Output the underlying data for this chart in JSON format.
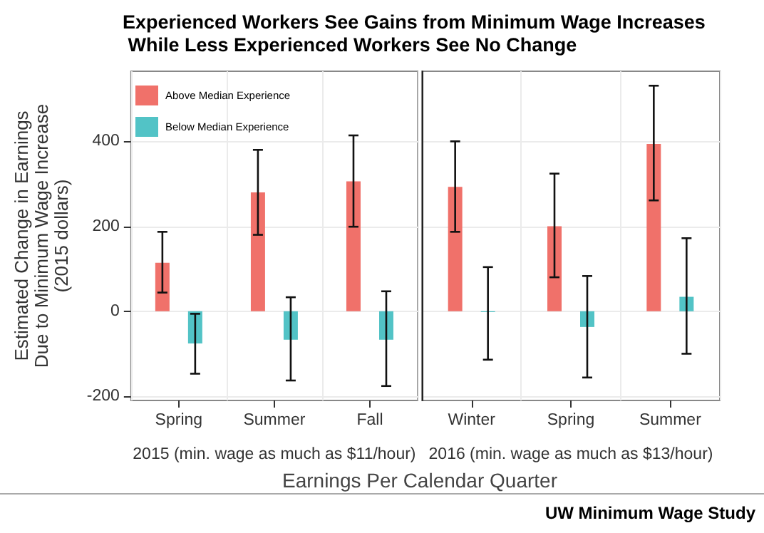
{
  "chart_data": [
    {
      "type": "bar",
      "title": "Experienced Workers See Gains from Minimum Wage Increases\n While Less Experienced Workers See No Change",
      "ylabel": "Estimated Change in Earnings\nDue to Minimum Wage Increase\n(2015 dollars)",
      "xlabel": "2015 (min. wage as much as $11/hour)",
      "annotations": [
        "Earnings Per Calendar Quarter",
        "UW Minimum Wage Study"
      ],
      "categories": [
        "Spring",
        "Summer",
        "Fall"
      ],
      "series": [
        {
          "name": "Above Median Experience",
          "color": "#f0716a",
          "values": [
            114,
            280,
            306
          ],
          "errors": [
            [
              44,
              187
            ],
            [
              180,
              380
            ],
            [
              199,
              414
            ]
          ]
        },
        {
          "name": "Below Median Experience",
          "color": "#52c3c6",
          "values": [
            -76,
            -67,
            -67
          ],
          "errors": [
            [
              -147,
              -6
            ],
            [
              -163,
              33
            ],
            [
              -176,
              47
            ]
          ]
        }
      ],
      "ylim": [
        -210,
        565
      ],
      "yticks": [
        -200,
        0,
        200,
        400
      ],
      "grid": true,
      "legend": "top left"
    },
    {
      "type": "bar",
      "xlabel": "2016 (min. wage as much as $13/hour)",
      "categories": [
        "Winter",
        "Spring",
        "Summer"
      ],
      "series": [
        {
          "color": "#f0716a",
          "values": [
            293,
            200,
            394
          ],
          "errors": [
            [
              187,
              400
            ],
            [
              80,
              324
            ],
            [
              261,
              531
            ]
          ]
        },
        {
          "color": "#52c3c6",
          "values": [
            -2,
            -37,
            34
          ],
          "errors": [
            [
              -114,
              104
            ],
            [
              -156,
              83
            ],
            [
              -100,
              172
            ]
          ]
        }
      ],
      "ylim": [
        -210,
        565
      ],
      "yticks": [
        -200,
        0,
        200,
        400
      ],
      "grid": true,
      "tick_labels": "x",
      "legend": false
    }
  ]
}
